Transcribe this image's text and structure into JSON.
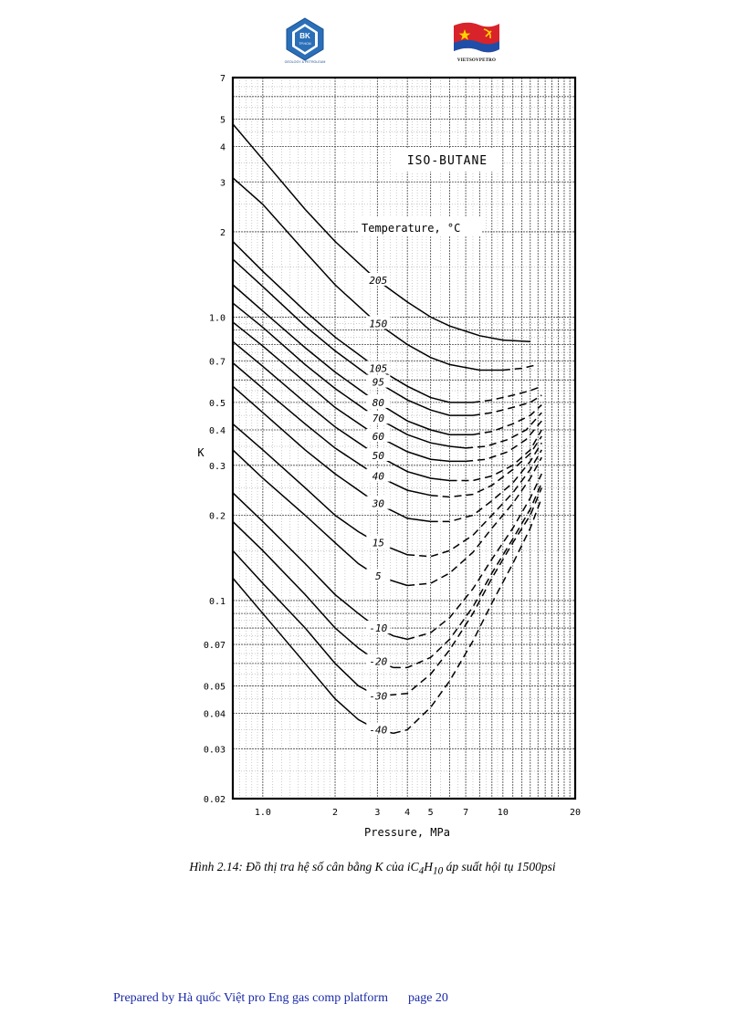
{
  "header": {
    "logo_left": {
      "monogram": "BK",
      "subtext": "TP.HCM",
      "caption": "GEOLOGY & PETROLEUM"
    },
    "logo_right": {
      "caption": "VIETSOVPETRO"
    }
  },
  "chart_data": {
    "type": "line",
    "title": "ISO-BUTANE",
    "legend_title": "Temperature, °C",
    "xlabel": "Pressure, MPa",
    "ylabel": "K",
    "xscale": "log",
    "yscale": "log",
    "xlim": [
      0.75,
      20
    ],
    "ylim": [
      0.02,
      7
    ],
    "grid": true,
    "x_ticks": [
      {
        "v": 1,
        "label": "1.0"
      },
      {
        "v": 2,
        "label": "2"
      },
      {
        "v": 3,
        "label": "3"
      },
      {
        "v": 4,
        "label": "4"
      },
      {
        "v": 5,
        "label": "5"
      },
      {
        "v": 7,
        "label": "7"
      },
      {
        "v": 10,
        "label": "10"
      },
      {
        "v": 20,
        "label": "20"
      }
    ],
    "y_ticks": [
      {
        "v": 7,
        "label": "7"
      },
      {
        "v": 5,
        "label": "5"
      },
      {
        "v": 4,
        "label": "4"
      },
      {
        "v": 3,
        "label": "3"
      },
      {
        "v": 2,
        "label": "2"
      },
      {
        "v": 1,
        "label": "1.0"
      },
      {
        "v": 0.7,
        "label": "0.7"
      },
      {
        "v": 0.5,
        "label": "0.5"
      },
      {
        "v": 0.4,
        "label": "0.4"
      },
      {
        "v": 0.3,
        "label": "0.3"
      },
      {
        "v": 0.2,
        "label": "0.2"
      },
      {
        "v": 0.1,
        "label": "0.1"
      },
      {
        "v": 0.07,
        "label": "0.07"
      },
      {
        "v": 0.05,
        "label": "0.05"
      },
      {
        "v": 0.04,
        "label": "0.04"
      },
      {
        "v": 0.03,
        "label": "0.03"
      },
      {
        "v": 0.02,
        "label": "0.02"
      }
    ],
    "series": [
      {
        "name": "205",
        "solid": [
          [
            0.75,
            4.8
          ],
          [
            1.0,
            3.6
          ],
          [
            1.5,
            2.4
          ],
          [
            2.0,
            1.85
          ],
          [
            3.0,
            1.35
          ],
          [
            4.0,
            1.13
          ],
          [
            5.0,
            1.0
          ],
          [
            6.0,
            0.93
          ],
          [
            8.0,
            0.86
          ],
          [
            10.0,
            0.83
          ],
          [
            13.0,
            0.82
          ]
        ],
        "dashed": []
      },
      {
        "name": "150",
        "solid": [
          [
            0.75,
            3.1
          ],
          [
            1.0,
            2.5
          ],
          [
            1.5,
            1.7
          ],
          [
            2.0,
            1.3
          ],
          [
            3.0,
            0.95
          ],
          [
            4.0,
            0.8
          ],
          [
            5.0,
            0.72
          ],
          [
            6.0,
            0.68
          ],
          [
            8.0,
            0.65
          ],
          [
            10.0,
            0.65
          ]
        ],
        "dashed": [
          [
            10.0,
            0.65
          ],
          [
            12.0,
            0.66
          ],
          [
            14.0,
            0.68
          ]
        ]
      },
      {
        "name": "105",
        "solid": [
          [
            0.75,
            1.85
          ],
          [
            1.0,
            1.45
          ],
          [
            1.5,
            1.05
          ],
          [
            2.0,
            0.85
          ],
          [
            3.0,
            0.66
          ],
          [
            4.0,
            0.57
          ],
          [
            5.0,
            0.52
          ],
          [
            6.0,
            0.5
          ],
          [
            7.5,
            0.5
          ]
        ],
        "dashed": [
          [
            7.5,
            0.5
          ],
          [
            9.0,
            0.51
          ],
          [
            11.0,
            0.53
          ],
          [
            13.0,
            0.55
          ],
          [
            14.5,
            0.57
          ]
        ]
      },
      {
        "name": "95",
        "solid": [
          [
            0.75,
            1.6
          ],
          [
            1.0,
            1.28
          ],
          [
            1.5,
            0.93
          ],
          [
            2.0,
            0.76
          ],
          [
            3.0,
            0.59
          ],
          [
            4.0,
            0.51
          ],
          [
            5.0,
            0.47
          ],
          [
            6.0,
            0.45
          ],
          [
            7.5,
            0.45
          ]
        ],
        "dashed": [
          [
            7.5,
            0.45
          ],
          [
            9.0,
            0.46
          ],
          [
            11.0,
            0.48
          ],
          [
            13.0,
            0.5
          ],
          [
            14.5,
            0.53
          ]
        ]
      },
      {
        "name": "80",
        "solid": [
          [
            0.75,
            1.3
          ],
          [
            1.0,
            1.05
          ],
          [
            1.5,
            0.78
          ],
          [
            2.0,
            0.64
          ],
          [
            3.0,
            0.5
          ],
          [
            4.0,
            0.43
          ],
          [
            5.0,
            0.4
          ],
          [
            6.0,
            0.385
          ],
          [
            7.5,
            0.385
          ]
        ],
        "dashed": [
          [
            7.5,
            0.385
          ],
          [
            9.0,
            0.395
          ],
          [
            11.0,
            0.42
          ],
          [
            13.0,
            0.45
          ],
          [
            14.5,
            0.49
          ]
        ]
      },
      {
        "name": "70",
        "solid": [
          [
            0.75,
            1.12
          ],
          [
            1.0,
            0.92
          ],
          [
            1.5,
            0.68
          ],
          [
            2.0,
            0.56
          ],
          [
            3.0,
            0.44
          ],
          [
            4.0,
            0.385
          ],
          [
            5.0,
            0.36
          ],
          [
            6.0,
            0.35
          ],
          [
            7.0,
            0.345
          ]
        ],
        "dashed": [
          [
            7.0,
            0.345
          ],
          [
            8.5,
            0.35
          ],
          [
            10.5,
            0.37
          ],
          [
            12.5,
            0.4
          ],
          [
            14.5,
            0.46
          ]
        ]
      },
      {
        "name": "60",
        "solid": [
          [
            0.75,
            0.96
          ],
          [
            1.0,
            0.79
          ],
          [
            1.5,
            0.59
          ],
          [
            2.0,
            0.48
          ],
          [
            3.0,
            0.38
          ],
          [
            4.0,
            0.335
          ],
          [
            5.0,
            0.315
          ],
          [
            6.0,
            0.31
          ],
          [
            7.0,
            0.31
          ]
        ],
        "dashed": [
          [
            7.0,
            0.31
          ],
          [
            8.5,
            0.315
          ],
          [
            10.5,
            0.335
          ],
          [
            12.5,
            0.37
          ],
          [
            14.5,
            0.43
          ]
        ]
      },
      {
        "name": "50",
        "solid": [
          [
            0.75,
            0.82
          ],
          [
            1.0,
            0.67
          ],
          [
            1.5,
            0.5
          ],
          [
            2.0,
            0.41
          ],
          [
            3.0,
            0.325
          ],
          [
            4.0,
            0.285
          ],
          [
            5.0,
            0.27
          ],
          [
            6.0,
            0.265
          ]
        ],
        "dashed": [
          [
            6.0,
            0.265
          ],
          [
            7.5,
            0.265
          ],
          [
            9.0,
            0.275
          ],
          [
            11.0,
            0.3
          ],
          [
            13.0,
            0.34
          ],
          [
            14.5,
            0.4
          ]
        ]
      },
      {
        "name": "40",
        "solid": [
          [
            0.75,
            0.69
          ],
          [
            1.0,
            0.56
          ],
          [
            1.5,
            0.42
          ],
          [
            2.0,
            0.345
          ],
          [
            3.0,
            0.275
          ],
          [
            4.0,
            0.245
          ],
          [
            5.0,
            0.235
          ]
        ],
        "dashed": [
          [
            5.0,
            0.235
          ],
          [
            6.0,
            0.232
          ],
          [
            7.5,
            0.237
          ],
          [
            9.0,
            0.255
          ],
          [
            11.0,
            0.29
          ],
          [
            13.0,
            0.33
          ],
          [
            14.5,
            0.38
          ]
        ]
      },
      {
        "name": "30",
        "solid": [
          [
            0.75,
            0.57
          ],
          [
            1.0,
            0.46
          ],
          [
            1.5,
            0.34
          ],
          [
            2.0,
            0.28
          ],
          [
            3.0,
            0.22
          ],
          [
            4.0,
            0.195
          ],
          [
            5.0,
            0.19
          ]
        ],
        "dashed": [
          [
            5.0,
            0.19
          ],
          [
            6.0,
            0.19
          ],
          [
            7.5,
            0.2
          ],
          [
            9.0,
            0.225
          ],
          [
            11.0,
            0.26
          ],
          [
            13.0,
            0.31
          ],
          [
            14.5,
            0.36
          ]
        ]
      },
      {
        "name": "15",
        "solid": [
          [
            0.75,
            0.42
          ],
          [
            1.0,
            0.34
          ],
          [
            1.5,
            0.25
          ],
          [
            2.0,
            0.2
          ],
          [
            2.5,
            0.175
          ],
          [
            3.0,
            0.16
          ],
          [
            4.0,
            0.145
          ]
        ],
        "dashed": [
          [
            4.0,
            0.145
          ],
          [
            5.0,
            0.143
          ],
          [
            6.0,
            0.15
          ],
          [
            7.5,
            0.17
          ],
          [
            9.0,
            0.2
          ],
          [
            11.0,
            0.24
          ],
          [
            13.0,
            0.29
          ],
          [
            14.5,
            0.34
          ]
        ]
      },
      {
        "name": "5",
        "solid": [
          [
            0.75,
            0.34
          ],
          [
            1.0,
            0.27
          ],
          [
            1.5,
            0.2
          ],
          [
            2.0,
            0.16
          ],
          [
            2.5,
            0.135
          ],
          [
            3.0,
            0.122
          ],
          [
            4.0,
            0.113
          ]
        ],
        "dashed": [
          [
            4.0,
            0.113
          ],
          [
            5.0,
            0.115
          ],
          [
            6.0,
            0.125
          ],
          [
            7.5,
            0.148
          ],
          [
            9.0,
            0.18
          ],
          [
            11.0,
            0.22
          ],
          [
            13.0,
            0.27
          ],
          [
            14.5,
            0.32
          ]
        ]
      },
      {
        "name": "-10",
        "solid": [
          [
            0.75,
            0.24
          ],
          [
            1.0,
            0.19
          ],
          [
            1.5,
            0.135
          ],
          [
            2.0,
            0.105
          ],
          [
            2.5,
            0.09
          ],
          [
            3.0,
            0.08
          ],
          [
            3.5,
            0.075
          ],
          [
            4.0,
            0.073
          ]
        ],
        "dashed": [
          [
            4.0,
            0.073
          ],
          [
            5.0,
            0.077
          ],
          [
            6.0,
            0.087
          ],
          [
            7.5,
            0.11
          ],
          [
            9.0,
            0.14
          ],
          [
            11.0,
            0.18
          ],
          [
            13.0,
            0.23
          ],
          [
            14.5,
            0.28
          ]
        ]
      },
      {
        "name": "-20",
        "solid": [
          [
            0.75,
            0.19
          ],
          [
            1.0,
            0.15
          ],
          [
            1.5,
            0.105
          ],
          [
            2.0,
            0.08
          ],
          [
            2.5,
            0.068
          ],
          [
            3.0,
            0.061
          ],
          [
            3.5,
            0.058
          ]
        ],
        "dashed": [
          [
            3.5,
            0.058
          ],
          [
            4.0,
            0.058
          ],
          [
            5.0,
            0.063
          ],
          [
            6.0,
            0.073
          ],
          [
            7.5,
            0.095
          ],
          [
            9.0,
            0.125
          ],
          [
            11.0,
            0.165
          ],
          [
            13.0,
            0.21
          ],
          [
            14.5,
            0.26
          ]
        ]
      },
      {
        "name": "-30",
        "solid": [
          [
            0.75,
            0.15
          ],
          [
            1.0,
            0.115
          ],
          [
            1.5,
            0.08
          ],
          [
            2.0,
            0.06
          ],
          [
            2.5,
            0.05
          ],
          [
            3.0,
            0.046
          ]
        ],
        "dashed": [
          [
            3.0,
            0.046
          ],
          [
            4.0,
            0.047
          ],
          [
            5.0,
            0.055
          ],
          [
            6.0,
            0.067
          ],
          [
            7.5,
            0.09
          ],
          [
            9.0,
            0.12
          ],
          [
            11.0,
            0.16
          ],
          [
            13.0,
            0.2
          ],
          [
            14.5,
            0.25
          ]
        ]
      },
      {
        "name": "-40",
        "solid": [
          [
            0.75,
            0.12
          ],
          [
            1.0,
            0.09
          ],
          [
            1.5,
            0.06
          ],
          [
            2.0,
            0.045
          ],
          [
            2.5,
            0.038
          ],
          [
            3.0,
            0.035
          ],
          [
            3.5,
            0.034
          ]
        ],
        "dashed": [
          [
            3.5,
            0.034
          ],
          [
            4.0,
            0.035
          ],
          [
            5.0,
            0.042
          ],
          [
            6.0,
            0.052
          ],
          [
            7.5,
            0.072
          ],
          [
            9.0,
            0.098
          ],
          [
            11.0,
            0.135
          ],
          [
            13.0,
            0.18
          ],
          [
            14.5,
            0.23
          ]
        ]
      }
    ]
  },
  "caption": {
    "prefix": "Hình 2.14: Đồ thị tra hệ số cân bằng K của iC",
    "sub1": "4",
    "mid": "H",
    "sub2": "10",
    "suffix": " áp suất hội tụ 1500psi"
  },
  "footer": {
    "text": "Prepared by Hà quốc Việt pro Eng gas comp platform",
    "page": "page 20"
  }
}
